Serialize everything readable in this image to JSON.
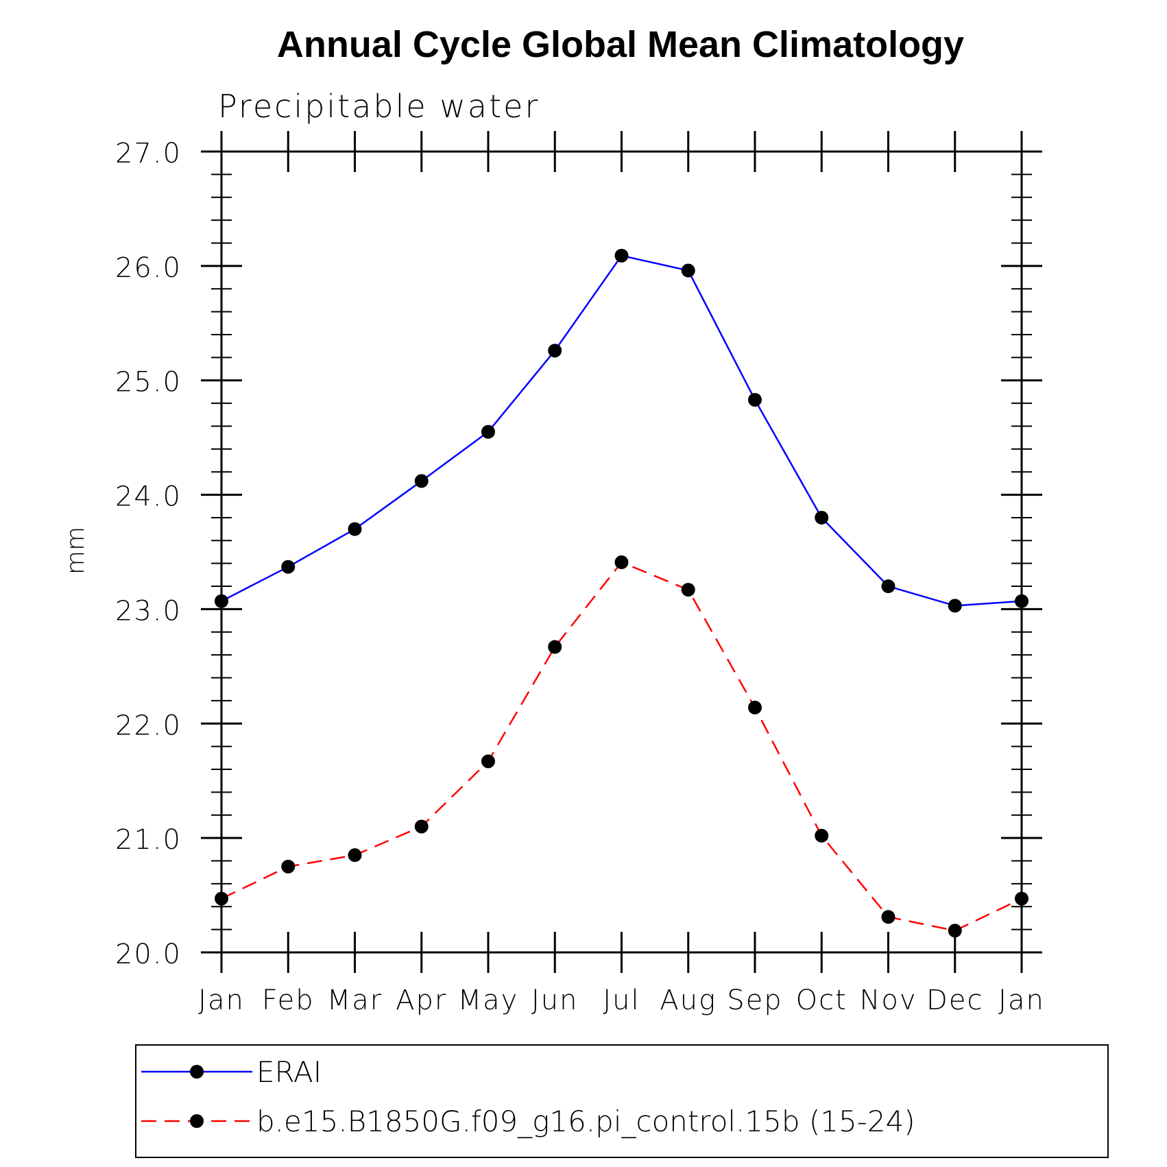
{
  "chart_data": {
    "type": "line",
    "title": "Annual Cycle Global Mean Climatology",
    "subtitle": "Precipitable water",
    "xlabel": "",
    "ylabel": "mm",
    "categories": [
      "Jan",
      "Feb",
      "Mar",
      "Apr",
      "May",
      "Jun",
      "Jul",
      "Aug",
      "Sep",
      "Oct",
      "Nov",
      "Dec",
      "Jan"
    ],
    "ylim": [
      20.0,
      27.0
    ],
    "yticks": [
      "20.0",
      "21.0",
      "22.0",
      "23.0",
      "24.0",
      "25.0",
      "26.0",
      "27.0"
    ],
    "yminor_step": 0.2,
    "grid": false,
    "legend_position": "bottom",
    "series": [
      {
        "name": "ERAI",
        "color": "#0000ff",
        "line_style": "solid",
        "marker": "filled-circle",
        "values": [
          23.07,
          23.37,
          23.7,
          24.12,
          24.55,
          25.26,
          26.09,
          25.96,
          24.83,
          23.8,
          23.2,
          23.03,
          23.07
        ]
      },
      {
        "name": "b.e15.B1850G.f09_g16.pi_control.15b (15-24)",
        "color": "#ff0000",
        "line_style": "dashed",
        "marker": "filled-circle",
        "values": [
          20.47,
          20.75,
          20.85,
          21.1,
          21.67,
          22.67,
          23.41,
          23.17,
          22.14,
          21.02,
          20.31,
          20.19,
          20.47
        ]
      }
    ]
  }
}
